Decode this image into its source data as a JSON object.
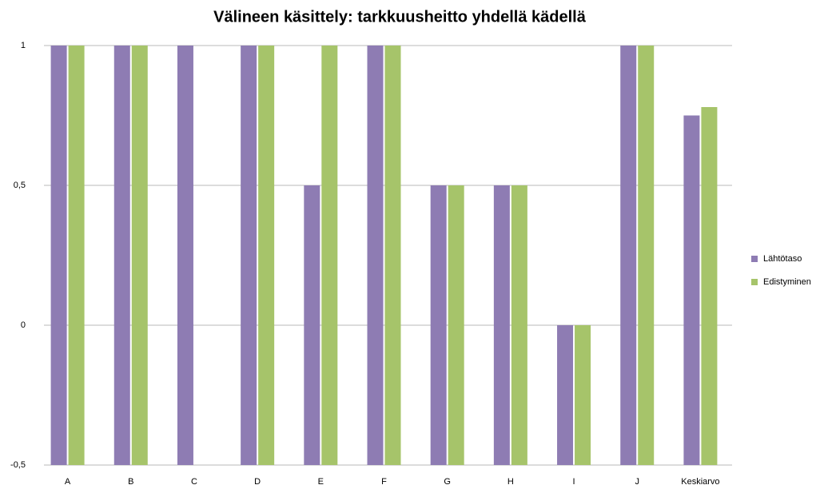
{
  "chart_data": {
    "type": "bar",
    "title": "Välineen käsittely: tarkkuusheitto yhdellä kädellä",
    "categories": [
      "A",
      "B",
      "C",
      "D",
      "E",
      "F",
      "G",
      "H",
      "I",
      "J",
      "Keskiarvo"
    ],
    "series": [
      {
        "name": "Lähtötaso",
        "color": "#8e7cb3",
        "values": [
          1,
          1,
          1,
          1,
          0.5,
          1,
          0.5,
          0.5,
          0,
          1,
          0.75
        ]
      },
      {
        "name": "Edistyminen",
        "color": "#a6c46a",
        "values": [
          1,
          1,
          null,
          1,
          1,
          1,
          0.5,
          0.5,
          0,
          1,
          0.78
        ]
      }
    ],
    "ylim": [
      -0.5,
      1
    ],
    "yticks": [
      {
        "value": -0.5,
        "label": "-0,5"
      },
      0,
      {
        "value": 0.5,
        "label": "0,5"
      },
      1
    ],
    "grid": true,
    "legend": "right"
  }
}
